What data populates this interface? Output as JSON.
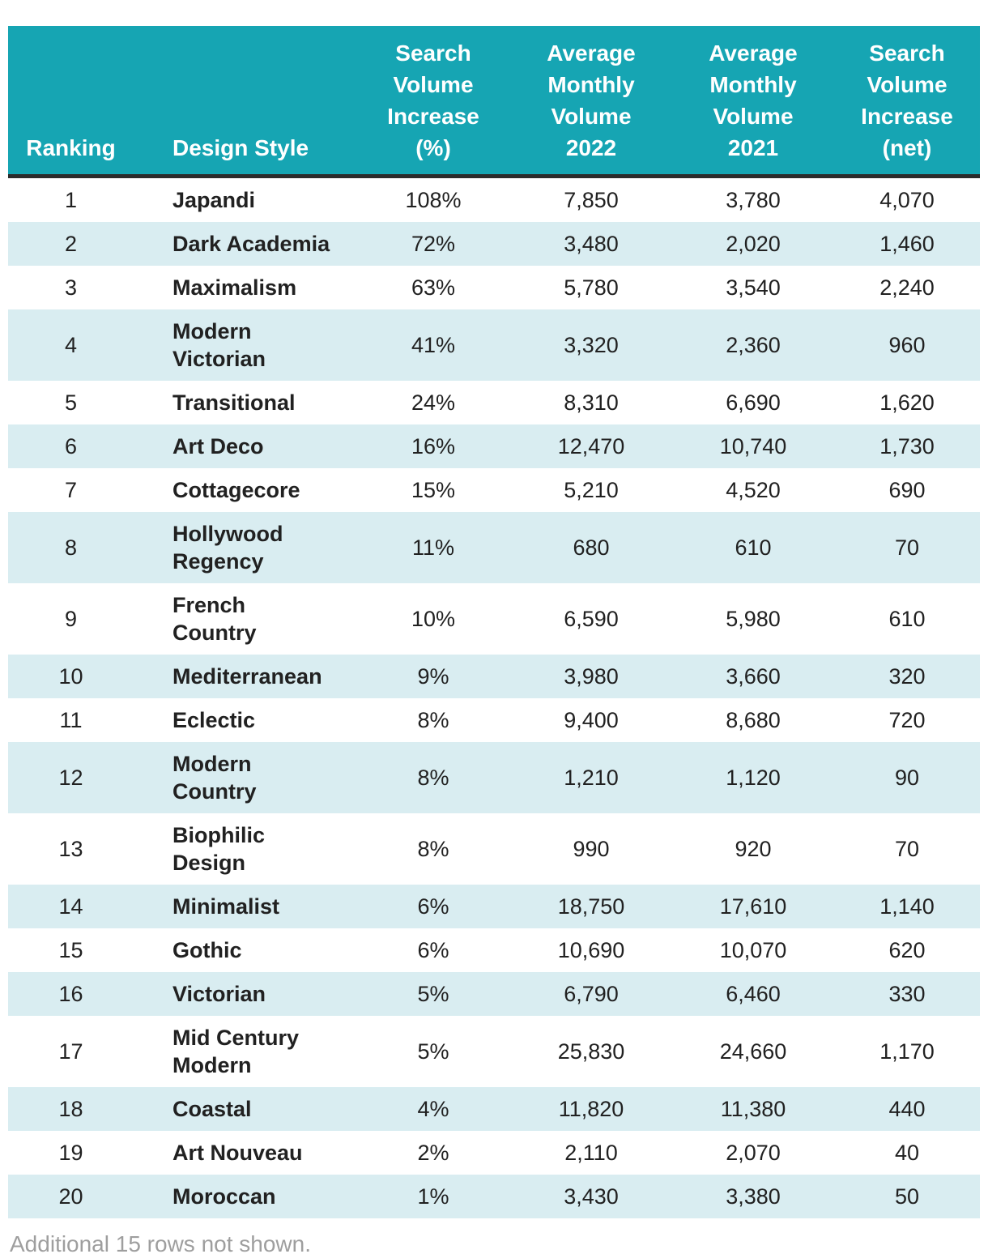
{
  "colors": {
    "header_bg": "#16a5b3",
    "header_text": "#ffffff",
    "alt_row_bg": "#d9edf1",
    "row_bg": "#ffffff",
    "header_border": "#2b2b2b",
    "body_text": "#212121",
    "footer_text": "#9e9e9e"
  },
  "table": {
    "columns": [
      {
        "id": "ranking",
        "label": "Ranking"
      },
      {
        "id": "style",
        "label": "Design Style"
      },
      {
        "id": "pct",
        "label": "Search\nVolume\nIncrease\n(%)"
      },
      {
        "id": "v2022",
        "label": "Average\nMonthly\nVolume\n2022"
      },
      {
        "id": "v2021",
        "label": "Average\nMonthly\nVolume\n2021"
      },
      {
        "id": "net",
        "label": "Search\nVolume\nIncrease\n(net)"
      }
    ],
    "rows": [
      {
        "ranking": "1",
        "style": "Japandi",
        "pct": "108%",
        "v2022": "7,850",
        "v2021": "3,780",
        "net": "4,070"
      },
      {
        "ranking": "2",
        "style": "Dark Academia",
        "pct": "72%",
        "v2022": "3,480",
        "v2021": "2,020",
        "net": "1,460"
      },
      {
        "ranking": "3",
        "style": "Maximalism",
        "pct": "63%",
        "v2022": "5,780",
        "v2021": "3,540",
        "net": "2,240"
      },
      {
        "ranking": "4",
        "style": "Modern\nVictorian",
        "pct": "41%",
        "v2022": "3,320",
        "v2021": "2,360",
        "net": "960"
      },
      {
        "ranking": "5",
        "style": "Transitional",
        "pct": "24%",
        "v2022": "8,310",
        "v2021": "6,690",
        "net": "1,620"
      },
      {
        "ranking": "6",
        "style": "Art Deco",
        "pct": "16%",
        "v2022": "12,470",
        "v2021": "10,740",
        "net": "1,730"
      },
      {
        "ranking": "7",
        "style": "Cottagecore",
        "pct": "15%",
        "v2022": "5,210",
        "v2021": "4,520",
        "net": "690"
      },
      {
        "ranking": "8",
        "style": "Hollywood\nRegency",
        "pct": "11%",
        "v2022": "680",
        "v2021": "610",
        "net": "70"
      },
      {
        "ranking": "9",
        "style": "French\nCountry",
        "pct": "10%",
        "v2022": "6,590",
        "v2021": "5,980",
        "net": "610"
      },
      {
        "ranking": "10",
        "style": "Mediterranean",
        "pct": "9%",
        "v2022": "3,980",
        "v2021": "3,660",
        "net": "320"
      },
      {
        "ranking": "11",
        "style": "Eclectic",
        "pct": "8%",
        "v2022": "9,400",
        "v2021": "8,680",
        "net": "720"
      },
      {
        "ranking": "12",
        "style": "Modern\nCountry",
        "pct": "8%",
        "v2022": "1,210",
        "v2021": "1,120",
        "net": "90"
      },
      {
        "ranking": "13",
        "style": "Biophilic\nDesign",
        "pct": "8%",
        "v2022": "990",
        "v2021": "920",
        "net": "70"
      },
      {
        "ranking": "14",
        "style": "Minimalist",
        "pct": "6%",
        "v2022": "18,750",
        "v2021": "17,610",
        "net": "1,140"
      },
      {
        "ranking": "15",
        "style": "Gothic",
        "pct": "6%",
        "v2022": "10,690",
        "v2021": "10,070",
        "net": "620"
      },
      {
        "ranking": "16",
        "style": "Victorian",
        "pct": "5%",
        "v2022": "6,790",
        "v2021": "6,460",
        "net": "330"
      },
      {
        "ranking": "17",
        "style": "Mid Century\nModern",
        "pct": "5%",
        "v2022": "25,830",
        "v2021": "24,660",
        "net": "1,170"
      },
      {
        "ranking": "18",
        "style": "Coastal",
        "pct": "4%",
        "v2022": "11,820",
        "v2021": "11,380",
        "net": "440"
      },
      {
        "ranking": "19",
        "style": "Art Nouveau",
        "pct": "2%",
        "v2022": "2,110",
        "v2021": "2,070",
        "net": "40"
      },
      {
        "ranking": "20",
        "style": "Moroccan",
        "pct": "1%",
        "v2022": "3,430",
        "v2021": "3,380",
        "net": "50"
      }
    ]
  },
  "footer": {
    "note": "Additional 15 rows not shown."
  }
}
